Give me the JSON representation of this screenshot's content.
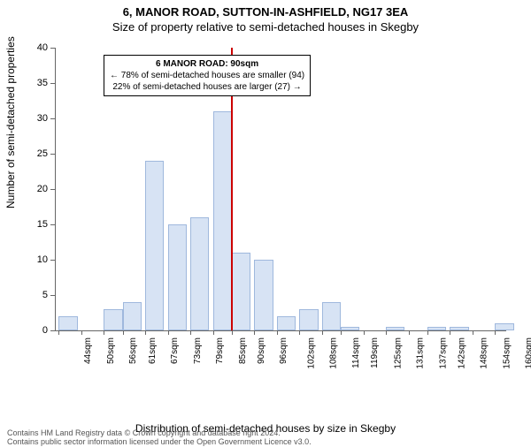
{
  "title_line1": "6, MANOR ROAD, SUTTON-IN-ASHFIELD, NG17 3EA",
  "title_line2": "Size of property relative to semi-detached houses in Skegby",
  "ylabel": "Number of semi-detached properties",
  "xlabel": "Distribution of semi-detached houses by size in Skegby",
  "footer_line1": "Contains HM Land Registry data © Crown copyright and database right 2024.",
  "footer_line2": "Contains public sector information licensed under the Open Government Licence v3.0.",
  "chart": {
    "type": "histogram",
    "background_color": "#ffffff",
    "axis_color": "#666666",
    "bar_fill": "#d7e3f4",
    "bar_stroke": "#9fb8dd",
    "marker_color": "#cc0000",
    "label_fontsize": 12,
    "tick_fontsize": 11,
    "xtick_fontsize": 10,
    "title_fontsize": 13,
    "xlim": [
      43,
      163
    ],
    "ylim": [
      0,
      40
    ],
    "ytick_step": 5,
    "bar_width_sqm": 5,
    "marker_value": 90,
    "xticks": [
      44,
      50,
      56,
      61,
      67,
      73,
      79,
      85,
      90,
      96,
      102,
      108,
      114,
      119,
      125,
      131,
      137,
      142,
      148,
      154,
      160
    ],
    "bars": [
      {
        "x": 44,
        "y": 2
      },
      {
        "x": 56,
        "y": 3
      },
      {
        "x": 61,
        "y": 4
      },
      {
        "x": 67,
        "y": 24
      },
      {
        "x": 73,
        "y": 15
      },
      {
        "x": 79,
        "y": 16
      },
      {
        "x": 85,
        "y": 31
      },
      {
        "x": 90,
        "y": 11
      },
      {
        "x": 96,
        "y": 10
      },
      {
        "x": 102,
        "y": 2
      },
      {
        "x": 108,
        "y": 3
      },
      {
        "x": 114,
        "y": 4
      },
      {
        "x": 119,
        "y": 0.5
      },
      {
        "x": 131,
        "y": 0.5
      },
      {
        "x": 142,
        "y": 0.5
      },
      {
        "x": 148,
        "y": 0.5
      },
      {
        "x": 160,
        "y": 1
      }
    ],
    "callout": {
      "title": "6 MANOR ROAD: 90sqm",
      "line_smaller": "← 78% of semi-detached houses are smaller (94)",
      "line_larger": "22% of semi-detached houses are larger (27) →"
    }
  }
}
